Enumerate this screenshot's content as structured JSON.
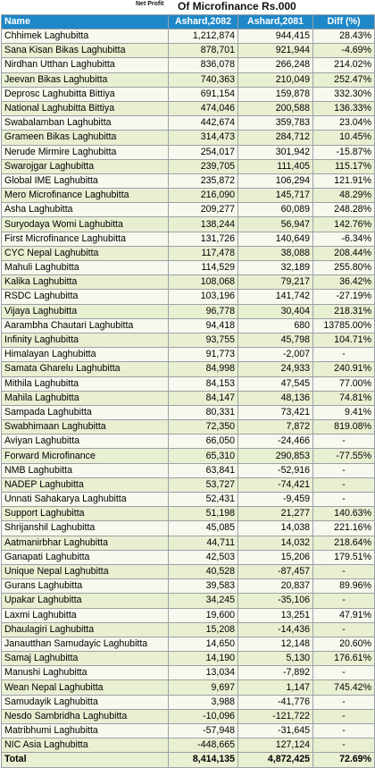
{
  "title": {
    "small": "Net Profit",
    "main": "Of Microfinance Rs.000"
  },
  "headers": [
    "Name",
    "Ashard,2082",
    "Ashard,2081",
    "Diff (%)"
  ],
  "rows": [
    [
      "Chhimek Laghubitta",
      "1,212,874",
      "944,415",
      "28.43%"
    ],
    [
      "Sana Kisan Bikas Laghubitta",
      "878,701",
      "921,944",
      "-4.69%"
    ],
    [
      "Nirdhan Utthan Laghubitta",
      "836,078",
      "266,248",
      "214.02%"
    ],
    [
      "Jeevan Bikas Laghubitta",
      "740,363",
      "210,049",
      "252.47%"
    ],
    [
      "Deprosc Laghubitta Bittiya",
      "691,154",
      "159,878",
      "332.30%"
    ],
    [
      "National Laghubitta Bittiya",
      "474,046",
      "200,588",
      "136.33%"
    ],
    [
      "Swabalamban Laghubitta",
      "442,674",
      "359,783",
      "23.04%"
    ],
    [
      "Grameen Bikas Laghubitta",
      "314,473",
      "284,712",
      "10.45%"
    ],
    [
      "Nerude Mirmire Laghubitta",
      "254,017",
      "301,942",
      "-15.87%"
    ],
    [
      "Swarojgar Laghubitta",
      "239,705",
      "111,405",
      "115.17%"
    ],
    [
      "Global IME Laghubitta",
      "235,872",
      "106,294",
      "121.91%"
    ],
    [
      "Mero Microfinance Laghubitta",
      "216,090",
      "145,717",
      "48.29%"
    ],
    [
      "Asha Laghubitta",
      "209,277",
      "60,089",
      "248.28%"
    ],
    [
      "Suryodaya Womi Laghubitta",
      "138,244",
      "56,947",
      "142.76%"
    ],
    [
      "First Microfinance Laghubitta",
      "131,726",
      "140,649",
      "-6.34%"
    ],
    [
      "CYC Nepal Laghubitta",
      "117,478",
      "38,088",
      "208.44%"
    ],
    [
      "Mahuli Laghubitta",
      "114,529",
      "32,189",
      "255.80%"
    ],
    [
      "Kalika Laghubitta",
      "108,068",
      "79,217",
      "36.42%"
    ],
    [
      "RSDC Laghubitta",
      "103,196",
      "141,742",
      "-27.19%"
    ],
    [
      "Vijaya Laghubitta",
      "96,778",
      "30,404",
      "218.31%"
    ],
    [
      "Aarambha Chautari Laghubitta",
      "94,418",
      "680",
      "13785.00%"
    ],
    [
      "Infinity Laghubitta",
      "93,755",
      "45,798",
      "104.71%"
    ],
    [
      "Himalayan Laghubitta",
      "91,773",
      "-2,007",
      "-"
    ],
    [
      "Samata Gharelu Laghubitta",
      "84,998",
      "24,933",
      "240.91%"
    ],
    [
      "Mithila Laghubitta",
      "84,153",
      "47,545",
      "77.00%"
    ],
    [
      "Mahila Laghubitta",
      "84,147",
      "48,136",
      "74.81%"
    ],
    [
      "Sampada Laghubitta",
      "80,331",
      "73,421",
      "9.41%"
    ],
    [
      "Swabhimaan Laghubitta",
      "72,350",
      "7,872",
      "819.08%"
    ],
    [
      "Aviyan Laghubitta",
      "66,050",
      "-24,466",
      "-"
    ],
    [
      "Forward Microfinance",
      "65,310",
      "290,853",
      "-77.55%"
    ],
    [
      "NMB Laghubitta",
      "63,841",
      "-52,916",
      "-"
    ],
    [
      "NADEP Laghubitta",
      "53,727",
      "-74,421",
      "-"
    ],
    [
      "Unnati Sahakarya Laghubitta",
      "52,431",
      "-9,459",
      "-"
    ],
    [
      "Support Laghubitta",
      "51,198",
      "21,277",
      "140.63%"
    ],
    [
      "Shrijanshil Laghubitta",
      "45,085",
      "14,038",
      "221.16%"
    ],
    [
      "Aatmanirbhar Laghubitta",
      "44,711",
      "14,032",
      "218.64%"
    ],
    [
      "Ganapati Laghubitta",
      "42,503",
      "15,206",
      "179.51%"
    ],
    [
      "Unique Nepal Laghubitta",
      "40,528",
      "-87,457",
      "-"
    ],
    [
      "Gurans Laghubitta",
      "39,583",
      "20,837",
      "89.96%"
    ],
    [
      "Upakar Laghubitta",
      "34,245",
      "-35,106",
      "-"
    ],
    [
      "Laxmi Laghubitta",
      "19,600",
      "13,251",
      "47.91%"
    ],
    [
      "Dhaulagiri Laghubitta",
      "15,208",
      "-14,436",
      "-"
    ],
    [
      "Janautthan Samudayic Laghubitta",
      "14,650",
      "12,148",
      "20.60%"
    ],
    [
      "Samaj Laghubitta",
      "14,190",
      "5,130",
      "176.61%"
    ],
    [
      "Manushi Laghubitta",
      "13,034",
      "-7,892",
      "-"
    ],
    [
      "Wean Nepal Laghubitta",
      "9,697",
      "1,147",
      "745.42%"
    ],
    [
      "Samudayik Laghubitta",
      "3,988",
      "-41,776",
      "-"
    ],
    [
      "Nesdo Sambridha Laghubitta",
      "-10,096",
      "-121,722",
      "-"
    ],
    [
      "Matribhumi Laghubitta",
      "-57,948",
      "-31,645",
      "-"
    ],
    [
      "NIC Asia Laghubitta",
      "-448,665",
      "127,124",
      "-"
    ]
  ],
  "total": [
    "Total",
    "8,414,135",
    "4,872,425",
    "72.69%"
  ]
}
